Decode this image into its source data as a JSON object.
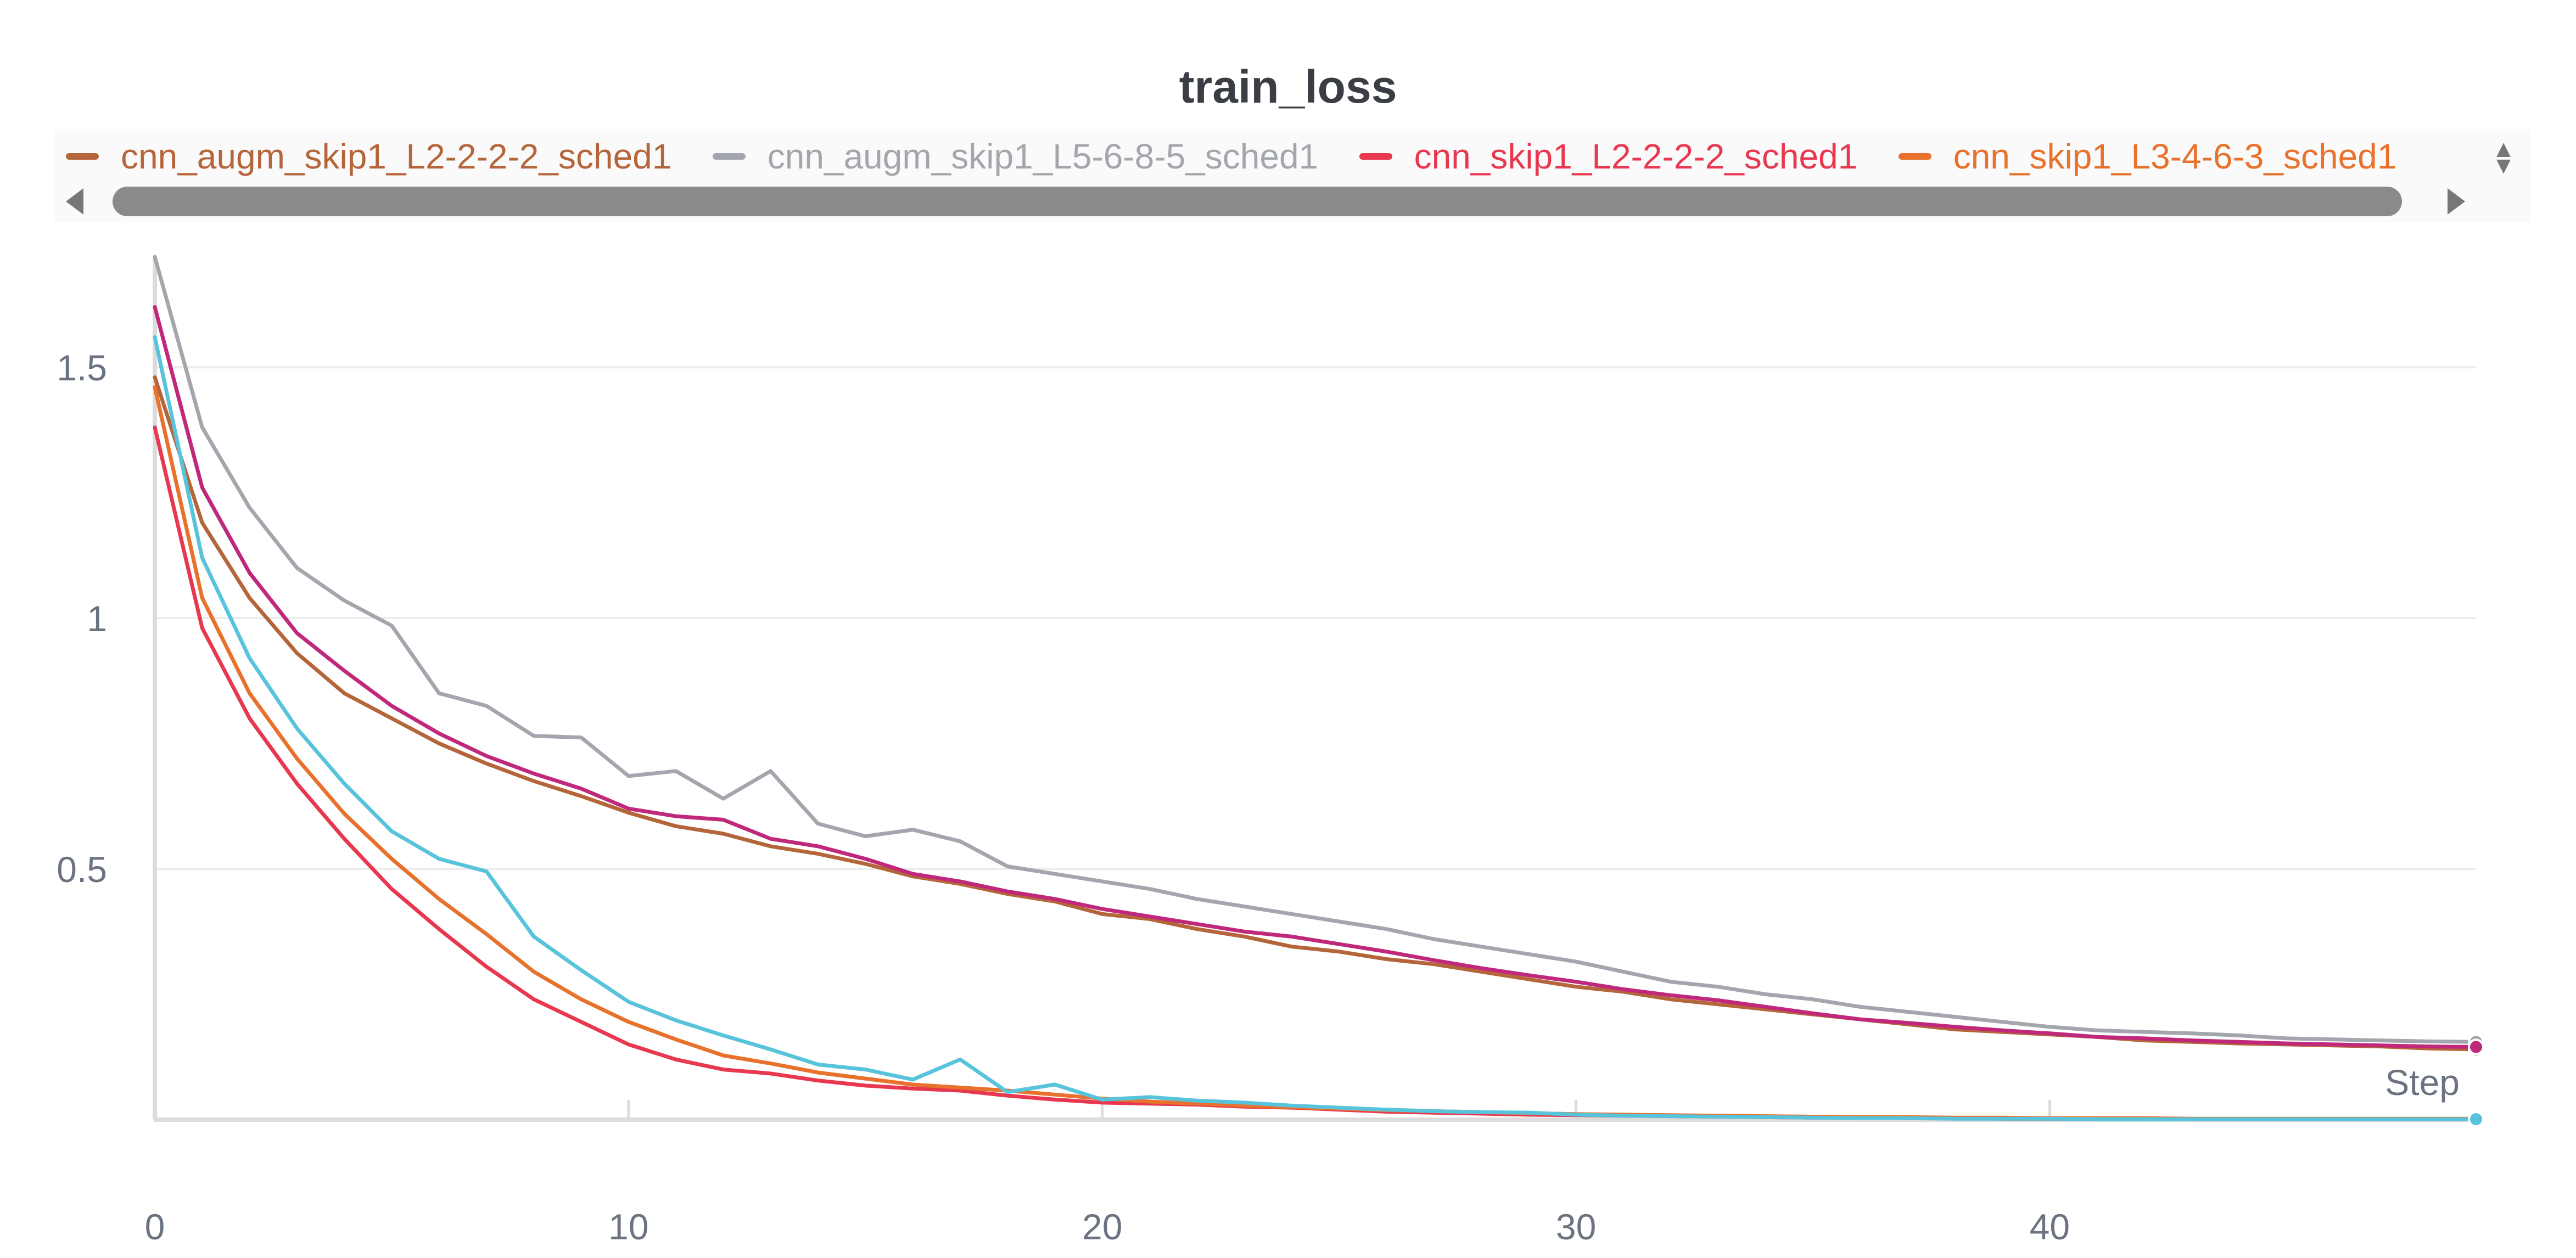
{
  "chart_data": {
    "type": "line",
    "title": "train_loss",
    "xlabel": "Step",
    "ylabel": "",
    "xlim": [
      0,
      49
    ],
    "ylim": [
      0,
      1.72
    ],
    "x_ticks": [
      0,
      10,
      20,
      30,
      40
    ],
    "y_ticks": [
      0.5,
      1,
      1.5
    ],
    "x_tick_labels": [
      "0",
      "10",
      "20",
      "30",
      "40"
    ],
    "y_tick_labels": [
      "0.5",
      "1",
      "1.5"
    ],
    "grid": "horizontal",
    "legend_position": "top",
    "series": [
      {
        "name": "cnn_augm_skip1_L2-2-2-2_sched1",
        "color": "#b5653a",
        "values": [
          1.48,
          1.19,
          1.04,
          0.93,
          0.85,
          0.8,
          0.75,
          0.71,
          0.675,
          0.645,
          0.612,
          0.585,
          0.57,
          0.545,
          0.53,
          0.51,
          0.485,
          0.47,
          0.45,
          0.435,
          0.41,
          0.4,
          0.38,
          0.365,
          0.345,
          0.335,
          0.32,
          0.31,
          0.295,
          0.28,
          0.265,
          0.255,
          0.24,
          0.23,
          0.22,
          0.21,
          0.2,
          0.19,
          0.18,
          0.175,
          0.17,
          0.165,
          0.158,
          0.155,
          0.152,
          0.15,
          0.148,
          0.146,
          0.142,
          0.14
        ]
      },
      {
        "name": "cnn_augm_skip1_L5-6-8-5_sched1",
        "color": "#a3a7ad",
        "values": [
          1.72,
          1.38,
          1.22,
          1.1,
          1.035,
          0.985,
          0.85,
          0.825,
          0.765,
          0.762,
          0.685,
          0.695,
          0.64,
          0.695,
          0.59,
          0.565,
          0.578,
          0.555,
          0.505,
          0.49,
          0.475,
          0.46,
          0.44,
          0.425,
          0.41,
          0.395,
          0.38,
          0.36,
          0.345,
          0.33,
          0.315,
          0.295,
          0.275,
          0.265,
          0.25,
          0.24,
          0.225,
          0.215,
          0.205,
          0.195,
          0.185,
          0.178,
          0.175,
          0.172,
          0.168,
          0.162,
          0.16,
          0.158,
          0.156,
          0.155
        ]
      },
      {
        "name": "cnn_skip1_L2-2-2-2_sched1",
        "color": "#e8384f",
        "values": [
          1.38,
          0.98,
          0.8,
          0.67,
          0.56,
          0.46,
          0.38,
          0.305,
          0.24,
          0.195,
          0.15,
          0.12,
          0.1,
          0.092,
          0.078,
          0.068,
          0.062,
          0.058,
          0.048,
          0.04,
          0.034,
          0.032,
          0.03,
          0.026,
          0.024,
          0.02,
          0.016,
          0.014,
          0.012,
          0.01,
          0.009,
          0.008,
          0.007,
          0.006,
          0.005,
          0.004,
          0.004,
          0.003,
          0.003,
          0.002,
          0.002,
          0.002,
          0.002,
          0.001,
          0.001,
          0.001,
          0.001,
          0.001,
          0.001,
          0.001
        ]
      },
      {
        "name": "cnn_skip1_L3-4-6-3_sched1",
        "color": "#e8712b",
        "values": [
          1.46,
          1.04,
          0.85,
          0.72,
          0.61,
          0.52,
          0.44,
          0.37,
          0.295,
          0.24,
          0.195,
          0.16,
          0.128,
          0.112,
          0.094,
          0.082,
          0.07,
          0.064,
          0.058,
          0.05,
          0.042,
          0.036,
          0.032,
          0.028,
          0.025,
          0.022,
          0.019,
          0.017,
          0.015,
          0.013,
          0.011,
          0.01,
          0.009,
          0.008,
          0.007,
          0.006,
          0.005,
          0.005,
          0.004,
          0.004,
          0.003,
          0.003,
          0.003,
          0.002,
          0.002,
          0.002,
          0.002,
          0.002,
          0.002,
          0.002
        ]
      },
      {
        "name": "",
        "color": "#58c4dc",
        "values": [
          1.56,
          1.12,
          0.92,
          0.78,
          0.67,
          0.575,
          0.52,
          0.495,
          0.365,
          0.298,
          0.235,
          0.198,
          0.168,
          0.14,
          0.11,
          0.1,
          0.08,
          0.12,
          0.055,
          0.07,
          0.04,
          0.045,
          0.038,
          0.034,
          0.028,
          0.024,
          0.02,
          0.017,
          0.015,
          0.014,
          0.01,
          0.008,
          0.007,
          0.006,
          0.005,
          0.004,
          0.003,
          0.003,
          0.002,
          0.002,
          0.002,
          0.001,
          0.001,
          0.001,
          0.001,
          0.001,
          0.001,
          0.001,
          0.001,
          0.001
        ]
      },
      {
        "name": "",
        "color": "#c0287c",
        "values": [
          1.62,
          1.26,
          1.09,
          0.97,
          0.895,
          0.825,
          0.77,
          0.725,
          0.69,
          0.66,
          0.62,
          0.605,
          0.598,
          0.56,
          0.545,
          0.52,
          0.49,
          0.475,
          0.455,
          0.44,
          0.42,
          0.405,
          0.39,
          0.375,
          0.365,
          0.35,
          0.335,
          0.318,
          0.302,
          0.288,
          0.275,
          0.26,
          0.248,
          0.238,
          0.225,
          0.212,
          0.2,
          0.193,
          0.185,
          0.178,
          0.172,
          0.165,
          0.162,
          0.158,
          0.155,
          0.152,
          0.15,
          0.148,
          0.146,
          0.145
        ]
      }
    ]
  },
  "legend": {
    "items": [
      {
        "label": "cnn_augm_skip1_L2-2-2-2_sched1",
        "color": "#b5653a"
      },
      {
        "label": "cnn_augm_skip1_L5-6-8-5_sched1",
        "color": "#a3a7ad"
      },
      {
        "label": "cnn_skip1_L2-2-2-2_sched1",
        "color": "#e8384f"
      },
      {
        "label": "cnn_skip1_L3-4-6-3_sched1",
        "color": "#e8712b"
      }
    ]
  }
}
